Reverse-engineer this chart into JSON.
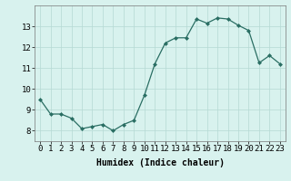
{
  "x": [
    0,
    1,
    2,
    3,
    4,
    5,
    6,
    7,
    8,
    9,
    10,
    11,
    12,
    13,
    14,
    15,
    16,
    17,
    18,
    19,
    20,
    21,
    22,
    23
  ],
  "y": [
    9.5,
    8.8,
    8.8,
    8.6,
    8.1,
    8.2,
    8.3,
    8.0,
    8.3,
    8.5,
    9.7,
    11.2,
    12.2,
    12.45,
    12.45,
    13.35,
    13.15,
    13.4,
    13.35,
    13.05,
    12.8,
    11.25,
    11.6,
    11.2
  ],
  "xlabel": "Humidex (Indice chaleur)",
  "xlim": [
    -0.5,
    23.5
  ],
  "ylim": [
    7.5,
    14.0
  ],
  "yticks": [
    8,
    9,
    10,
    11,
    12,
    13
  ],
  "xticks": [
    0,
    1,
    2,
    3,
    4,
    5,
    6,
    7,
    8,
    9,
    10,
    11,
    12,
    13,
    14,
    15,
    16,
    17,
    18,
    19,
    20,
    21,
    22,
    23
  ],
  "xtick_labels": [
    "0",
    "1",
    "2",
    "3",
    "4",
    "5",
    "6",
    "7",
    "8",
    "9",
    "10",
    "11",
    "12",
    "13",
    "14",
    "15",
    "16",
    "17",
    "18",
    "19",
    "20",
    "21",
    "22",
    "23"
  ],
  "line_color": "#2a6e63",
  "marker_color": "#2a6e63",
  "bg_color": "#d8f2ee",
  "grid_color": "#b5d9d4",
  "label_fontsize": 7,
  "tick_fontsize": 6.5
}
